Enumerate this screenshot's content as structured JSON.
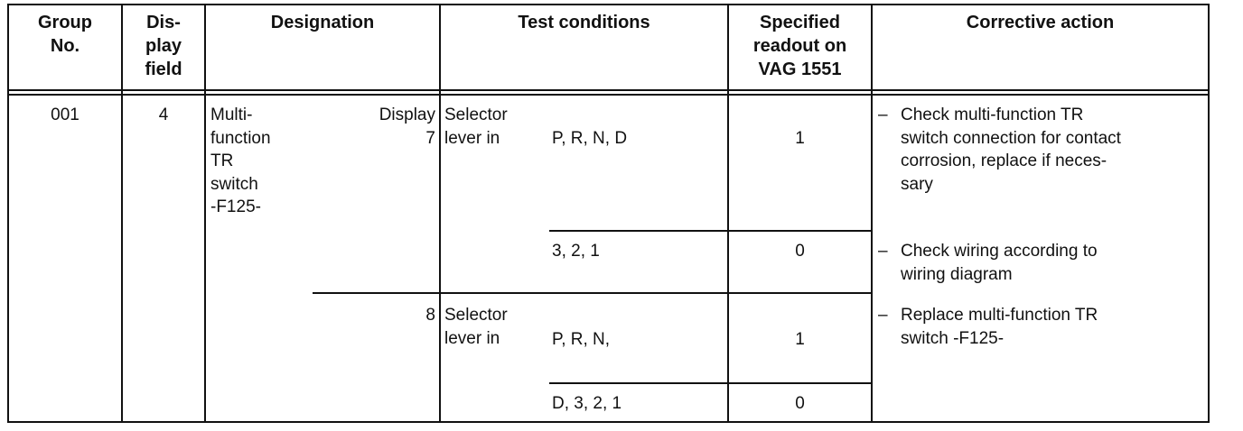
{
  "headers": {
    "group_no": "Group\nNo.",
    "display_field": "Dis-\nplay\nfield",
    "designation": "Designation",
    "test_conditions": "Test conditions",
    "specified_readout": "Specified\nreadout on\nVAG 1551",
    "corrective_action": "Corrective action"
  },
  "row": {
    "group_no": "001",
    "display_field": "4",
    "designation": "Multi-\nfunction\nTR\nswitch\n-F125-",
    "display_label": "Display\n7",
    "display_8": "8",
    "conditions": [
      {
        "label": "Selector\nlever in",
        "value": "P, R, N, D",
        "readout": "1"
      },
      {
        "label": "",
        "value": "3, 2, 1",
        "readout": "0"
      },
      {
        "label": "Selector\nlever in",
        "value": "P, R, N,",
        "readout": "1"
      },
      {
        "label": "",
        "value": "D, 3, 2, 1",
        "readout": "0"
      }
    ],
    "actions": [
      "Check multi-function TR\nswitch connection for contact\ncorrosion, replace if neces-\nsary",
      "Check wiring according to\nwiring diagram",
      "Replace multi-function TR\nswitch -F125-"
    ],
    "dash": "–"
  }
}
